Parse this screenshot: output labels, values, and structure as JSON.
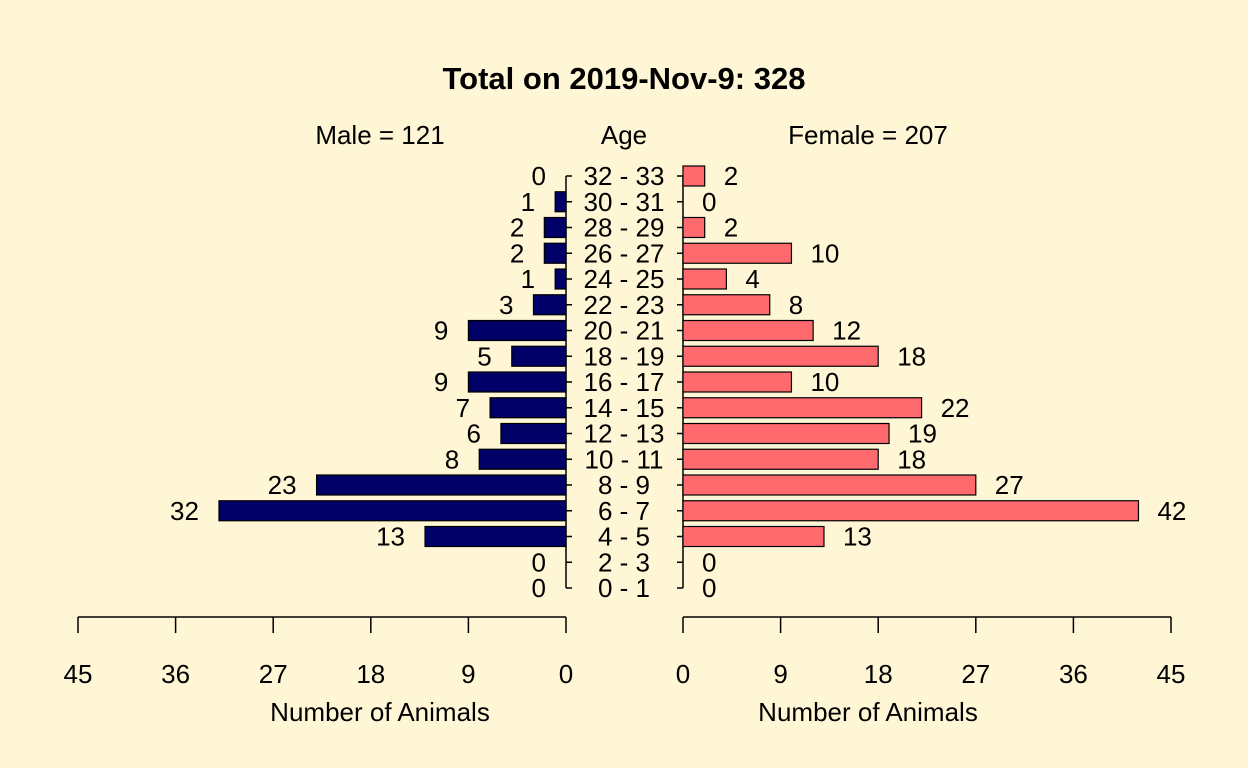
{
  "chart_data": {
    "type": "bar",
    "title": "Total on 2019-Nov-9: 328",
    "age_header": "Age",
    "male_header": "Male = 121",
    "female_header": "Female = 207",
    "xlabel_left": "Number of Animals",
    "xlabel_right": "Number of Animals",
    "categories": [
      "0 - 1",
      "2 - 3",
      "4 - 5",
      "6 - 7",
      "8 - 9",
      "10 - 11",
      "12 - 13",
      "14 - 15",
      "16 - 17",
      "18 - 19",
      "20 - 21",
      "22 - 23",
      "24 - 25",
      "26 - 27",
      "28 - 29",
      "30 - 31",
      "32 - 33"
    ],
    "series": [
      {
        "name": "Male",
        "values": [
          0,
          0,
          13,
          32,
          23,
          8,
          6,
          7,
          9,
          5,
          9,
          3,
          1,
          2,
          2,
          1,
          0
        ]
      },
      {
        "name": "Female",
        "values": [
          0,
          0,
          13,
          42,
          27,
          18,
          19,
          22,
          10,
          18,
          12,
          8,
          4,
          10,
          2,
          0,
          2
        ]
      }
    ],
    "xlim": [
      0,
      45
    ],
    "xticks": [
      0,
      9,
      18,
      27,
      36,
      45
    ],
    "colors": {
      "male": "#000066",
      "female": "#FF6A6E",
      "background": "#FFF6D6"
    },
    "orientation": "horizontal-pyramid"
  }
}
